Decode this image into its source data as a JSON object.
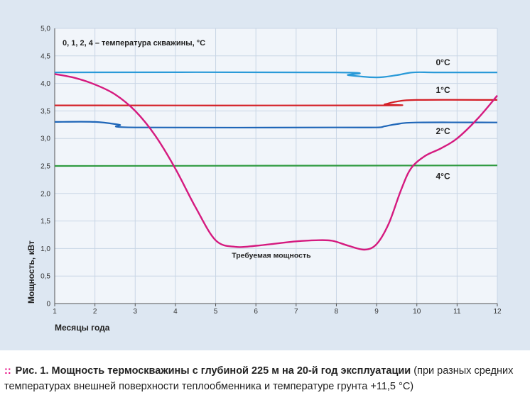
{
  "chart_data": {
    "type": "line",
    "annotation": "0, 1, 2, 4 – температура скважины, °С",
    "xlabel": "Месяцы года",
    "ylabel": "Мощность, кВт",
    "x_ticks": [
      "1",
      "2",
      "3",
      "4",
      "5",
      "6",
      "7",
      "8",
      "9",
      "10",
      "11",
      "12"
    ],
    "y_ticks": [
      "0",
      "0,5",
      "1,0",
      "1,5",
      "2,0",
      "2,5",
      "3,0",
      "3,5",
      "4,0",
      "4,5",
      "5,0"
    ],
    "xlim": [
      1,
      12
    ],
    "ylim": [
      0,
      5
    ],
    "grid": true,
    "series": [
      {
        "name": "0°С",
        "color": "#2a9ad8",
        "x": [
          1,
          8,
          8.3,
          9,
          9.5,
          9.9,
          10.5,
          12
        ],
        "y": [
          4.2,
          4.2,
          4.15,
          4.11,
          4.15,
          4.2,
          4.2,
          4.2
        ]
      },
      {
        "name": "1°С",
        "color": "#d42027",
        "x": [
          1,
          9,
          9.2,
          9.5,
          10,
          12
        ],
        "y": [
          3.6,
          3.6,
          3.62,
          3.67,
          3.7,
          3.7
        ]
      },
      {
        "name": "2°С",
        "color": "#1f66b8",
        "x": [
          1,
          2,
          2.6,
          3,
          8,
          9,
          9.2,
          9.5,
          10,
          12
        ],
        "y": [
          3.3,
          3.3,
          3.25,
          3.2,
          3.2,
          3.2,
          3.22,
          3.26,
          3.29,
          3.29
        ]
      },
      {
        "name": "4°С",
        "color": "#2e9a3f",
        "x": [
          1,
          12
        ],
        "y": [
          2.5,
          2.51
        ]
      },
      {
        "name": "Требуемая мощность",
        "color": "#d51a7f",
        "x": [
          1,
          1.5,
          2,
          2.5,
          3,
          3.5,
          4,
          4.5,
          5,
          5.5,
          6,
          6.5,
          7,
          7.5,
          7.9,
          8.3,
          8.7,
          9,
          9.3,
          9.6,
          9.85,
          10.2,
          10.6,
          11,
          11.5,
          12
        ],
        "y": [
          4.17,
          4.1,
          3.98,
          3.8,
          3.5,
          3.05,
          2.45,
          1.75,
          1.15,
          1.03,
          1.05,
          1.09,
          1.13,
          1.15,
          1.14,
          1.05,
          0.98,
          1.08,
          1.45,
          2.05,
          2.45,
          2.68,
          2.82,
          3.0,
          3.35,
          3.78
        ]
      }
    ]
  },
  "caption": {
    "bullet": "::",
    "bold_text": "Рис. 1. Мощность термоскважины с глубиной 225 м на 20-й год эксплуатации",
    "normal_text": " (при разных средних температурах внешней поверхности теплообменника и температуре грунта +11,5 °С)"
  }
}
